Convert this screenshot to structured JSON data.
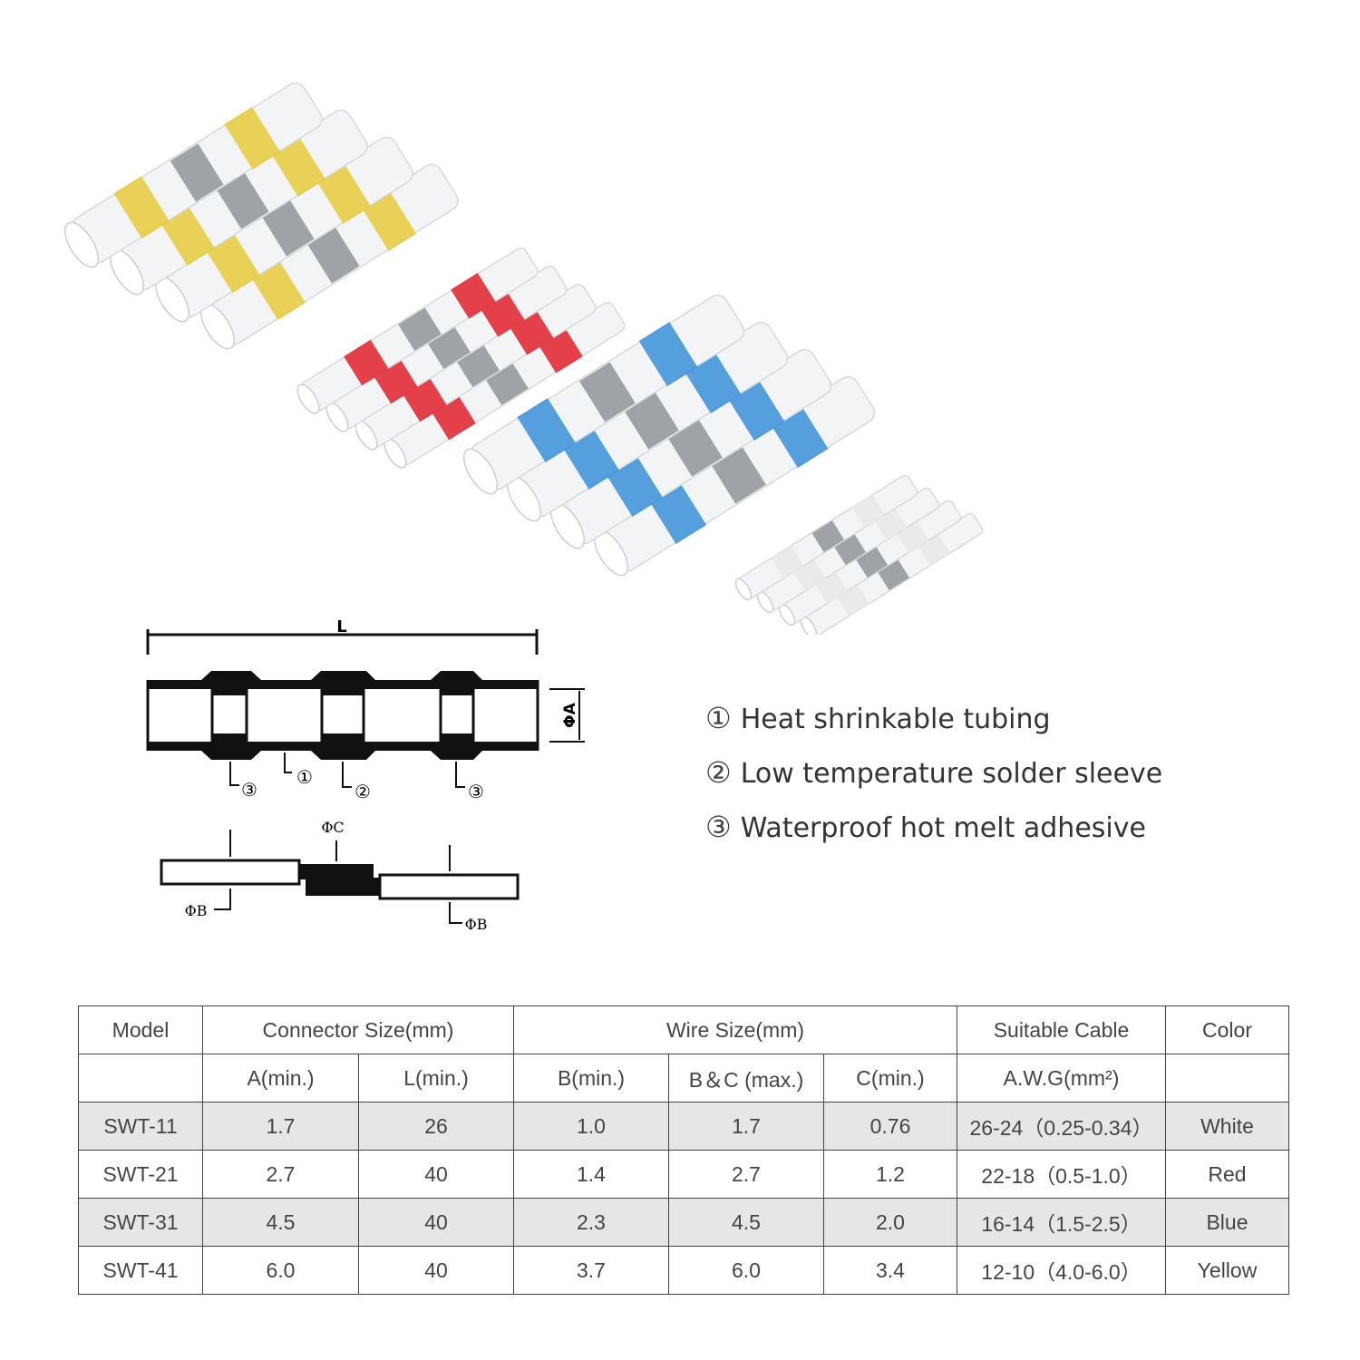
{
  "product_groups": [
    {
      "name": "Yellow",
      "color": "#e8c93a"
    },
    {
      "name": "Red",
      "color": "#e0202a"
    },
    {
      "name": "Blue",
      "color": "#3a8fd8"
    },
    {
      "name": "White",
      "color": "#e8e8e8"
    }
  ],
  "diagram": {
    "length_label": "L",
    "diameter_a_label": "ΦA",
    "diameter_b_label": "ΦB",
    "diameter_c_label": "ΦC",
    "callouts": [
      "③",
      "①",
      "②",
      "③"
    ]
  },
  "legend": [
    {
      "num": "①",
      "text": "Heat shrinkable tubing"
    },
    {
      "num": "②",
      "text": "Low temperature solder sleeve"
    },
    {
      "num": "③",
      "text": "Waterproof hot melt adhesive"
    }
  ],
  "table": {
    "header1": {
      "model": "Model",
      "connector": "Connector Size(mm)",
      "wire": "Wire Size(mm)",
      "cable": "Suitable Cable",
      "color": "Color"
    },
    "header2": {
      "a": "A(min.)",
      "l": "L(min.)",
      "b": "B(min.)",
      "bc": "B＆C (max.)",
      "c": "C(min.)",
      "awg": "A.W.G(mm²)"
    },
    "rows": [
      {
        "model": "SWT-11",
        "a": "1.7",
        "l": "26",
        "b": "1.0",
        "bc": "1.7",
        "c": "0.76",
        "awg": "26-24（0.25-0.34）",
        "color": "White"
      },
      {
        "model": "SWT-21",
        "a": "2.7",
        "l": "40",
        "b": "1.4",
        "bc": "2.7",
        "c": "1.2",
        "awg": "22-18（0.5-1.0）",
        "color": "Red"
      },
      {
        "model": "SWT-31",
        "a": "4.5",
        "l": "40",
        "b": "2.3",
        "bc": "4.5",
        "c": "2.0",
        "awg": "16-14（1.5-2.5）",
        "color": "Blue"
      },
      {
        "model": "SWT-41",
        "a": "6.0",
        "l": "40",
        "b": "3.7",
        "bc": "6.0",
        "c": "3.4",
        "awg": "12-10（4.0-6.0）",
        "color": "Yellow"
      }
    ]
  }
}
